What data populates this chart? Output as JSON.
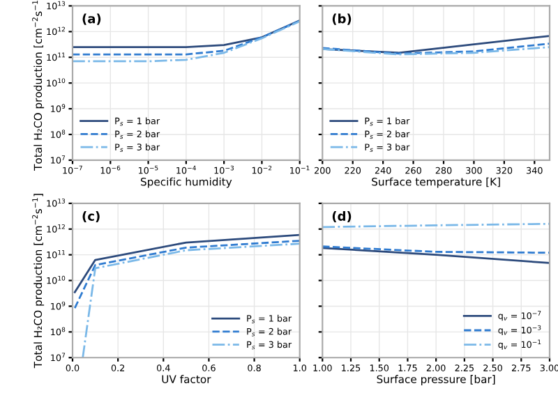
{
  "chart_data": [
    {
      "type": "line",
      "title": "(a)",
      "xlabel": "Specific humidity",
      "ylabel": "Total H₂CO production [cm$^{−2}$s$^{−1}$]",
      "log": "xy",
      "grid": true,
      "legend": "bottom left",
      "x": [
        1e-07,
        1e-06,
        1e-05,
        0.0001,
        0.001,
        0.01,
        0.1
      ],
      "xlim": [
        1e-07,
        0.1
      ],
      "ylim": [
        10000000.0,
        10000000000000.0
      ],
      "xticks": [
        {
          "value": 1e-07,
          "label": "10$^{−7}$"
        },
        {
          "value": 1e-06,
          "label": "10$^{−6}$"
        },
        {
          "value": 1e-05,
          "label": "10$^{−5}$"
        },
        {
          "value": 0.0001,
          "label": "10$^{−4}$"
        },
        {
          "value": 0.001,
          "label": "10$^{−3}$"
        },
        {
          "value": 0.01,
          "label": "10$^{−2}$"
        },
        {
          "value": 0.1,
          "label": "10$^{−1}$"
        }
      ],
      "yticks": [
        {
          "value": 10000000.0,
          "label": "10$^{7}$"
        },
        {
          "value": 100000000.0,
          "label": "10$^{8}$"
        },
        {
          "value": 1000000000.0,
          "label": "10$^{9}$"
        },
        {
          "value": 10000000000.0,
          "label": "10$^{10}$"
        },
        {
          "value": 100000000000.0,
          "label": "10$^{11}$"
        },
        {
          "value": 1000000000000.0,
          "label": "10$^{12}$"
        },
        {
          "value": 10000000000000.0,
          "label": "10$^{13}$"
        }
      ],
      "series": [
        {
          "name": "P$_{s}$ = 1 bar",
          "color": "#2c4a7c",
          "line_style": "solid",
          "values": [
            250000000000.0,
            250000000000.0,
            250000000000.0,
            250000000000.0,
            300000000000.0,
            600000000000.0,
            2700000000000.0
          ]
        },
        {
          "name": "P$_{s}$ = 2 bar",
          "color": "#2f7bd0",
          "line_style": "dashed",
          "values": [
            130000000000.0,
            130000000000.0,
            130000000000.0,
            130000000000.0,
            180000000000.0,
            600000000000.0,
            2600000000000.0
          ]
        },
        {
          "name": "P$_{s}$ = 3 bar",
          "color": "#7ab8e8",
          "line_style": "dashdot",
          "values": [
            70000000000.0,
            70000000000.0,
            70000000000.0,
            80000000000.0,
            150000000000.0,
            550000000000.0,
            2500000000000.0
          ]
        }
      ]
    },
    {
      "type": "line",
      "title": "(b)",
      "xlabel": "Surface temperature [K]",
      "log": "y",
      "grid": true,
      "legend": "bottom left",
      "tick_labels": "x",
      "x": [
        200,
        250,
        300,
        350
      ],
      "xlim": [
        200,
        350
      ],
      "ylim": [
        10000000.0,
        10000000000000.0
      ],
      "xticks": [
        200,
        220,
        240,
        260,
        280,
        300,
        320,
        340
      ],
      "yticks": [
        {
          "value": 10000000.0,
          "label": null
        },
        {
          "value": 100000000.0,
          "label": null
        },
        {
          "value": 1000000000.0,
          "label": null
        },
        {
          "value": 10000000000.0,
          "label": null
        },
        {
          "value": 100000000000.0,
          "label": null
        },
        {
          "value": 1000000000000.0,
          "label": null
        },
        {
          "value": 10000000000000.0,
          "label": null
        }
      ],
      "series": [
        {
          "name": "P$_{s}$ = 1 bar",
          "color": "#2c4a7c",
          "line_style": "solid",
          "values": [
            210000000000.0,
            150000000000.0,
            320000000000.0,
            680000000000.0
          ]
        },
        {
          "name": "P$_{s}$ = 2 bar",
          "color": "#2f7bd0",
          "line_style": "dashed",
          "values": [
            230000000000.0,
            140000000000.0,
            170000000000.0,
            340000000000.0
          ]
        },
        {
          "name": "P$_{s}$ = 3 bar",
          "color": "#7ab8e8",
          "line_style": "dashdot",
          "values": [
            210000000000.0,
            130000000000.0,
            150000000000.0,
            250000000000.0
          ]
        }
      ]
    },
    {
      "type": "line",
      "title": "(c)",
      "xlabel": "UV factor",
      "ylabel": "Total H₂CO production [cm$^{−2}$s$^{−1}$]",
      "log": "y",
      "grid": true,
      "legend": "bottom right",
      "x": [
        0.01,
        0.1,
        0.5,
        1.0
      ],
      "xlim": [
        0,
        1
      ],
      "ylim": [
        10000000.0,
        10000000000000.0
      ],
      "xticks": [
        {
          "value": 0,
          "label": "0.0"
        },
        0.2,
        0.4,
        0.6,
        0.8,
        {
          "value": 1,
          "label": "1.0"
        }
      ],
      "yticks": [
        {
          "value": 10000000.0,
          "label": "10$^{7}$"
        },
        {
          "value": 100000000.0,
          "label": "10$^{8}$"
        },
        {
          "value": 1000000000.0,
          "label": "10$^{9}$"
        },
        {
          "value": 10000000000.0,
          "label": "10$^{10}$"
        },
        {
          "value": 100000000000.0,
          "label": "10$^{11}$"
        },
        {
          "value": 1000000000000.0,
          "label": "10$^{12}$"
        },
        {
          "value": 10000000000000.0,
          "label": "10$^{13}$"
        }
      ],
      "series": [
        {
          "name": "P$_{s}$ = 1 bar",
          "color": "#2c4a7c",
          "line_style": "solid",
          "values": [
            3500000000.0,
            63000000000.0,
            300000000000.0,
            590000000000.0
          ]
        },
        {
          "name": "P$_{s}$ = 2 bar",
          "color": "#2f7bd0",
          "line_style": "dashed",
          "values": [
            850000000.0,
            40000000000.0,
            190000000000.0,
            350000000000.0
          ]
        },
        {
          "name": "P$_{s}$ = 3 bar",
          "color": "#7ab8e8",
          "line_style": "dashdot",
          "x": [
            0.045,
            0.1,
            0.5,
            1.0
          ],
          "values": [
            10000000.0,
            30000000000.0,
            150000000000.0,
            270000000000.0
          ]
        }
      ]
    },
    {
      "type": "line",
      "title": "(d)",
      "xlabel": "Surface pressure [bar]",
      "log": "y",
      "grid": true,
      "legend": "bottom right",
      "tick_labels": "x",
      "x": [
        1.0,
        2.0,
        3.0
      ],
      "xlim": [
        1,
        3
      ],
      "ylim": [
        10000000.0,
        10000000000000.0
      ],
      "xticks": [
        {
          "value": 1,
          "label": "1.00"
        },
        1.25,
        {
          "value": 1.5,
          "label": "1.50"
        },
        1.75,
        {
          "value": 2,
          "label": "2.00"
        },
        2.25,
        {
          "value": 2.5,
          "label": "2.50"
        },
        2.75,
        {
          "value": 3,
          "label": "3.00"
        }
      ],
      "yticks": [
        {
          "value": 10000000.0,
          "label": null
        },
        {
          "value": 100000000.0,
          "label": null
        },
        {
          "value": 1000000000.0,
          "label": null
        },
        {
          "value": 10000000000.0,
          "label": null
        },
        {
          "value": 100000000000.0,
          "label": null
        },
        {
          "value": 1000000000000.0,
          "label": null
        },
        {
          "value": 10000000000000.0,
          "label": null
        }
      ],
      "series": [
        {
          "name": "q$_{v}$ = 10$^{−7}$",
          "color": "#2c4a7c",
          "line_style": "solid",
          "values": [
            185000000000.0,
            100000000000.0,
            48000000000.0
          ]
        },
        {
          "name": "q$_{v}$ = 10$^{−3}$",
          "color": "#2f7bd0",
          "line_style": "dashed",
          "values": [
            210000000000.0,
            130000000000.0,
            120000000000.0
          ]
        },
        {
          "name": "q$_{v}$ = 10$^{−1}$",
          "color": "#7ab8e8",
          "line_style": "dashdot",
          "values": [
            1200000000000.0,
            1400000000000.0,
            1600000000000.0
          ]
        }
      ]
    }
  ]
}
